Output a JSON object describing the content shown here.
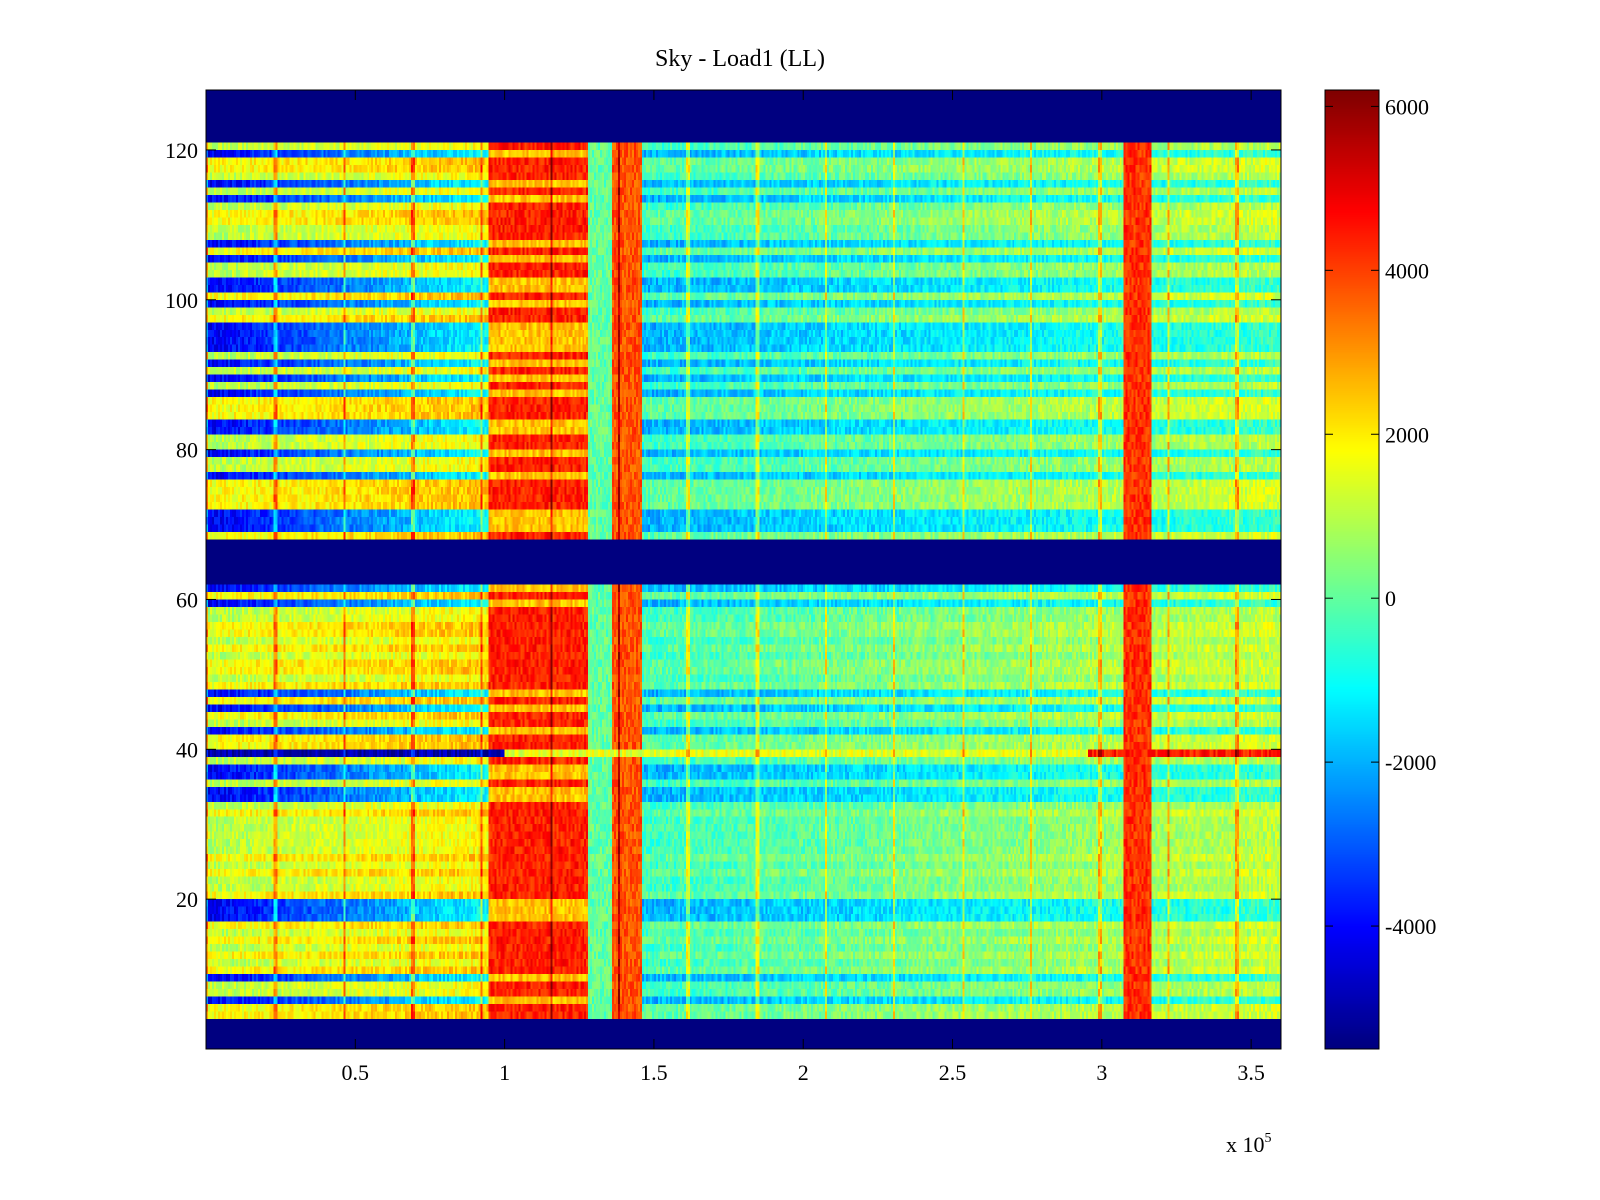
{
  "chart_data": {
    "type": "heatmap",
    "title": "Sky - Load1 (LL)",
    "xlabel": "",
    "ylabel": "",
    "x_multiplier_label": "x 10",
    "x_multiplier_exponent": "5",
    "xlim": [
      0,
      360000
    ],
    "ylim": [
      0,
      128
    ],
    "x_ticks": [
      50000,
      100000,
      150000,
      200000,
      250000,
      300000,
      350000
    ],
    "x_tick_labels": [
      "0.5",
      "1",
      "1.5",
      "2",
      "2.5",
      "3",
      "3.5"
    ],
    "y_ticks": [
      20,
      40,
      60,
      80,
      100,
      120
    ],
    "y_tick_labels": [
      "20",
      "40",
      "60",
      "80",
      "100",
      "120"
    ],
    "colorbar": {
      "range": [
        -5500,
        6200
      ],
      "ticks": [
        6000,
        4000,
        2000,
        0,
        -2000,
        -4000
      ],
      "tick_labels": [
        "6000",
        "4000",
        "2000",
        "0",
        "-2000",
        "-4000"
      ],
      "colormap": "jet"
    },
    "masked_rows": [
      [
        0,
        4
      ],
      [
        62,
        68
      ],
      [
        121,
        128
      ]
    ],
    "masked_value": -5500,
    "features": {
      "hot_band_x": [
        95000,
        128000
      ],
      "secondary_hot_band_x": [
        138000,
        146000
      ],
      "vertical_line_x": 312000,
      "horizontal_line_y": 39,
      "periodic_lines_every_x": 23000
    }
  }
}
